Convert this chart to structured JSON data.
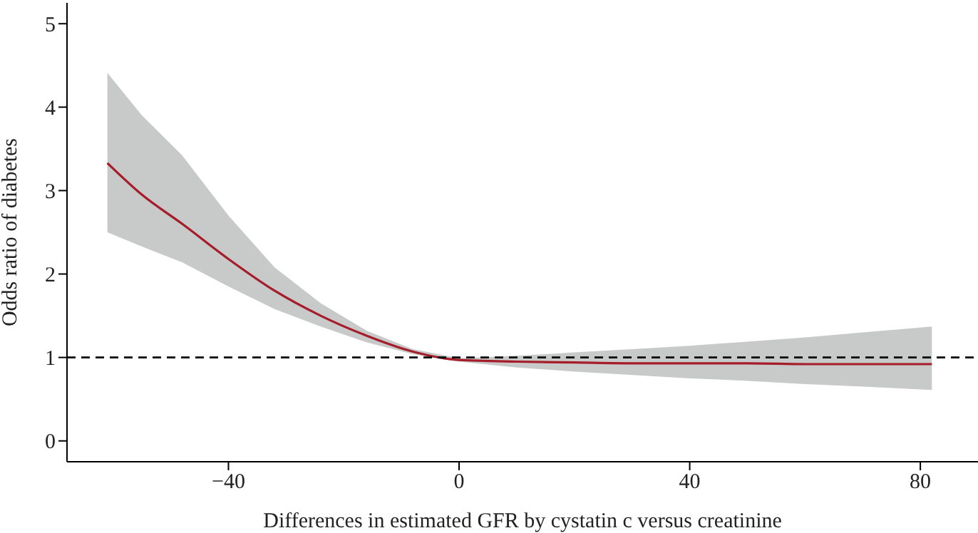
{
  "chart_data": {
    "type": "line",
    "xlabel": "Differences in estimated GFR by cystatin c versus creatinine",
    "ylabel": "Odds ratio of diabetes",
    "x": [
      -61,
      -55,
      -48,
      -40,
      -32,
      -24,
      -16,
      -8,
      0,
      10,
      20,
      30,
      40,
      50,
      60,
      70,
      82
    ],
    "series": [
      {
        "color": "#a51c2a",
        "values": [
          3.33,
          2.95,
          2.6,
          2.18,
          1.8,
          1.5,
          1.26,
          1.07,
          0.97,
          0.95,
          0.94,
          0.93,
          0.93,
          0.93,
          0.92,
          0.92,
          0.92
        ],
        "lower": [
          2.5,
          2.33,
          2.14,
          1.85,
          1.58,
          1.37,
          1.18,
          1.04,
          0.95,
          0.88,
          0.83,
          0.79,
          0.75,
          0.72,
          0.68,
          0.65,
          0.61
        ],
        "upper": [
          4.41,
          3.9,
          3.42,
          2.7,
          2.08,
          1.65,
          1.32,
          1.1,
          0.99,
          1.02,
          1.06,
          1.1,
          1.14,
          1.19,
          1.24,
          1.3,
          1.37
        ]
      }
    ],
    "xlim": [
      -68,
      90
    ],
    "xticks": [
      -40,
      0,
      40,
      80
    ],
    "ylim": [
      -0.25,
      5.25
    ],
    "yticks": [
      0,
      1,
      2,
      3,
      4,
      5
    ],
    "ref_lines": [
      {
        "axis": "y",
        "value": 1,
        "color": "#000000",
        "line_style": "dashed"
      }
    ],
    "grid": false,
    "legend": false,
    "marker": "none",
    "line_style": "solid"
  }
}
